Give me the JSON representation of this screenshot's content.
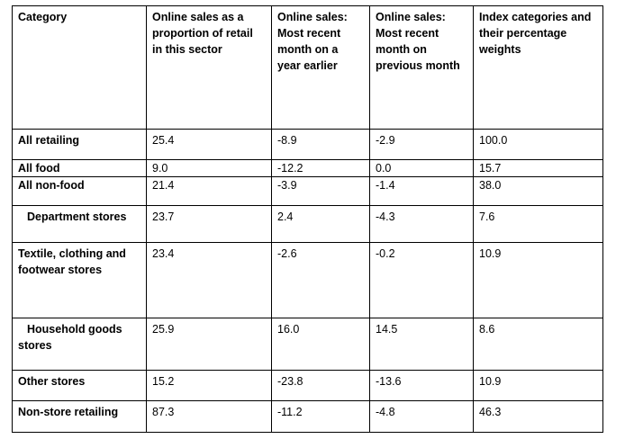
{
  "table": {
    "headers": [
      "Category",
      "Online sales as a proportion of retail in this sector",
      "Online sales: Most recent month on a year earlier",
      "Online sales: Most recent month on previous month",
      "Index categories and their percentage weights"
    ],
    "rows": [
      {
        "category": "All retailing",
        "proportion": "25.4",
        "year": "-8.9",
        "month": "-2.9",
        "weight": "100.0"
      },
      {
        "category": "All food",
        "proportion": "9.0",
        "year": "-12.2",
        "month": "0.0",
        "weight": "15.7"
      },
      {
        "category": "All non-food",
        "proportion": "21.4",
        "year": "-3.9",
        "month": "-1.4",
        "weight": "38.0"
      },
      {
        "category": "Department stores",
        "proportion": "23.7",
        "year": "2.4",
        "month": "-4.3",
        "weight": "7.6"
      },
      {
        "category": "Textile, clothing and footwear stores",
        "proportion": "23.4",
        "year": "-2.6",
        "month": "-0.2",
        "weight": "10.9"
      },
      {
        "category": "Household goods stores",
        "proportion": "25.9",
        "year": "16.0",
        "month": "14.5",
        "weight": "8.6"
      },
      {
        "category": "Other stores",
        "proportion": "15.2",
        "year": "-23.8",
        "month": "-13.6",
        "weight": "10.9"
      },
      {
        "category": "Non-store retailing",
        "proportion": "87.3",
        "year": "-11.2",
        "month": "-4.8",
        "weight": "46.3"
      }
    ]
  }
}
